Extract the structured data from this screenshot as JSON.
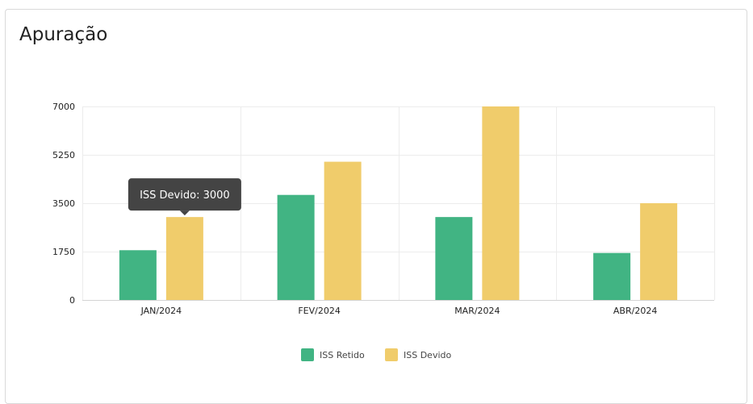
{
  "card": {
    "title": "Apuração"
  },
  "tooltip": {
    "series_index": 1,
    "category_index": 0,
    "text": "ISS Devido: 3000"
  },
  "chart_data": {
    "type": "bar",
    "categories": [
      "JAN/2024",
      "FEV/2024",
      "MAR/2024",
      "ABR/2024"
    ],
    "series": [
      {
        "name": "ISS Retido",
        "color": "#41b483",
        "values": [
          1800,
          3800,
          3000,
          1700
        ]
      },
      {
        "name": "ISS Devido",
        "color": "#f0cc6b",
        "values": [
          3000,
          5000,
          7000,
          3500
        ]
      }
    ],
    "ylim": [
      0,
      7000
    ],
    "yticks": [
      0,
      1750,
      3500,
      5250,
      7000
    ],
    "grid": true,
    "legend_position": "bottom"
  }
}
